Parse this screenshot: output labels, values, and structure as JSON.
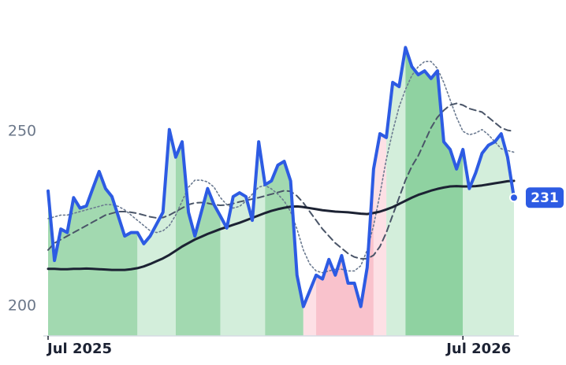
{
  "chart_data": {
    "type": "line",
    "categories": [
      "Jul 2025",
      null,
      null,
      null,
      null,
      null,
      null,
      null,
      null,
      null,
      null,
      null,
      null,
      null,
      null,
      null,
      null,
      null,
      null,
      null,
      null,
      null,
      null,
      null,
      null,
      null,
      null,
      null,
      null,
      null,
      null,
      null,
      null,
      null,
      null,
      null,
      null,
      null,
      null,
      null,
      null,
      null,
      null,
      null,
      null,
      null,
      null,
      null,
      null,
      null,
      null,
      null,
      null,
      null,
      null,
      null,
      null,
      null,
      null,
      null,
      null,
      null,
      null,
      null,
      null,
      "Jul 2026",
      null,
      null,
      null,
      null,
      null,
      null,
      null,
      null
    ],
    "ylim": [
      191.4,
      283.1
    ],
    "yticks": [
      200,
      250
    ],
    "series": [
      {
        "color": "#2d5be3",
        "style": "solid",
        "width": 4,
        "values": [
          232.9,
          213,
          222,
          221,
          231,
          228,
          228.6,
          233.6,
          238.5,
          233.6,
          231.3,
          225.7,
          220,
          221,
          221,
          217.8,
          220,
          223.4,
          226.8,
          250.5,
          242.6,
          247,
          226.8,
          220,
          226.8,
          233.6,
          229,
          225.7,
          222.3,
          231.3,
          232.4,
          231.3,
          224.5,
          247,
          234.7,
          235.8,
          240.3,
          241.4,
          235.8,
          208.8,
          199.8,
          204.3,
          208.8,
          207.7,
          213.3,
          208.8,
          214.4,
          206.5,
          206.5,
          199.8,
          211,
          239.2,
          249.3,
          248.2,
          264,
          262.8,
          274,
          268.5,
          266.2,
          267.3,
          265.1,
          267.3,
          247,
          244.8,
          239.2,
          244.8,
          233.6,
          238.1,
          243.7,
          246,
          247,
          249.3,
          242.6,
          231
        ]
      },
      {
        "color": "#1c2233",
        "style": "solid",
        "width": 3,
        "values": [
          210.6,
          210.6,
          210.5,
          210.5,
          210.6,
          210.6,
          210.7,
          210.6,
          210.5,
          210.4,
          210.3,
          210.3,
          210.3,
          210.5,
          210.8,
          211.3,
          212,
          212.8,
          213.6,
          214.6,
          215.8,
          217,
          218,
          219,
          219.8,
          220.6,
          221.3,
          222,
          222.6,
          223.2,
          223.8,
          224.5,
          225.2,
          225.9,
          226.6,
          227.2,
          227.7,
          228.1,
          228.4,
          228.5,
          228.3,
          228,
          227.7,
          227.4,
          227.2,
          227,
          226.9,
          226.8,
          226.6,
          226.4,
          226.3,
          226.6,
          227,
          227.6,
          228.3,
          229.2,
          230.1,
          231,
          231.8,
          232.4,
          233,
          233.5,
          233.9,
          234.2,
          234.3,
          234.2,
          234.2,
          234.3,
          234.5,
          234.8,
          235.1,
          235.4,
          235.7,
          235.8
        ]
      },
      {
        "color": "#4a5568",
        "style": "dashed",
        "width": 2,
        "values": [
          216,
          218,
          219,
          220,
          221,
          222,
          223,
          224,
          225,
          226,
          226.5,
          227,
          227,
          226.8,
          226.5,
          226,
          225.5,
          225.2,
          225.3,
          226,
          227,
          228,
          229,
          229.5,
          229.6,
          229.4,
          229,
          228.8,
          228.9,
          229.3,
          229.8,
          230.2,
          230.6,
          231,
          231.5,
          232,
          232.5,
          233,
          232.8,
          231.5,
          229.5,
          227,
          224.5,
          222,
          220,
          218,
          216.5,
          215,
          214,
          213.5,
          213.5,
          214.5,
          217,
          221,
          226,
          231,
          236,
          240,
          243,
          247,
          251,
          254,
          256,
          257.5,
          258,
          257.5,
          256.5,
          256,
          255.5,
          254,
          252.5,
          251,
          250.3,
          250
        ]
      },
      {
        "color": "#6b7a90",
        "style": "dotted",
        "width": 1.6,
        "values": [
          225,
          225.5,
          226,
          226,
          226.5,
          227,
          227.5,
          228,
          228.5,
          229,
          229,
          228.5,
          227.5,
          226,
          224.5,
          223,
          221.5,
          221,
          221.5,
          223,
          226,
          230,
          234,
          236,
          236,
          235.5,
          234,
          231,
          229,
          228,
          228.5,
          230,
          232,
          234,
          234.5,
          233.5,
          232,
          230,
          227,
          222,
          216,
          212,
          210,
          209.5,
          210,
          210.5,
          210.5,
          210,
          210,
          211.5,
          216,
          223,
          232,
          242,
          250,
          257,
          262,
          266,
          268.5,
          270,
          270,
          268,
          264,
          259,
          254,
          250,
          249,
          249.5,
          250.5,
          249,
          247,
          245,
          244.5,
          244
        ]
      }
    ],
    "bands": [
      {
        "start": 0,
        "end": 14,
        "color": "#a2d9b0"
      },
      {
        "start": 14,
        "end": 20,
        "color": "#d3eedb"
      },
      {
        "start": 20,
        "end": 27,
        "color": "#a2d9b0"
      },
      {
        "start": 27,
        "end": 34,
        "color": "#d3eedb"
      },
      {
        "start": 34,
        "end": 40,
        "color": "#a2d9b0"
      },
      {
        "start": 40,
        "end": 42,
        "color": "#fde0e5"
      },
      {
        "start": 42,
        "end": 51,
        "color": "#f9c2cc"
      },
      {
        "start": 51,
        "end": 53,
        "color": "#fde0e5"
      },
      {
        "start": 53,
        "end": 56,
        "color": "#d3eedb"
      },
      {
        "start": 56,
        "end": 65,
        "color": "#8fd2a1"
      },
      {
        "start": 65,
        "end": 73,
        "color": "#d3eedb"
      }
    ]
  }
}
